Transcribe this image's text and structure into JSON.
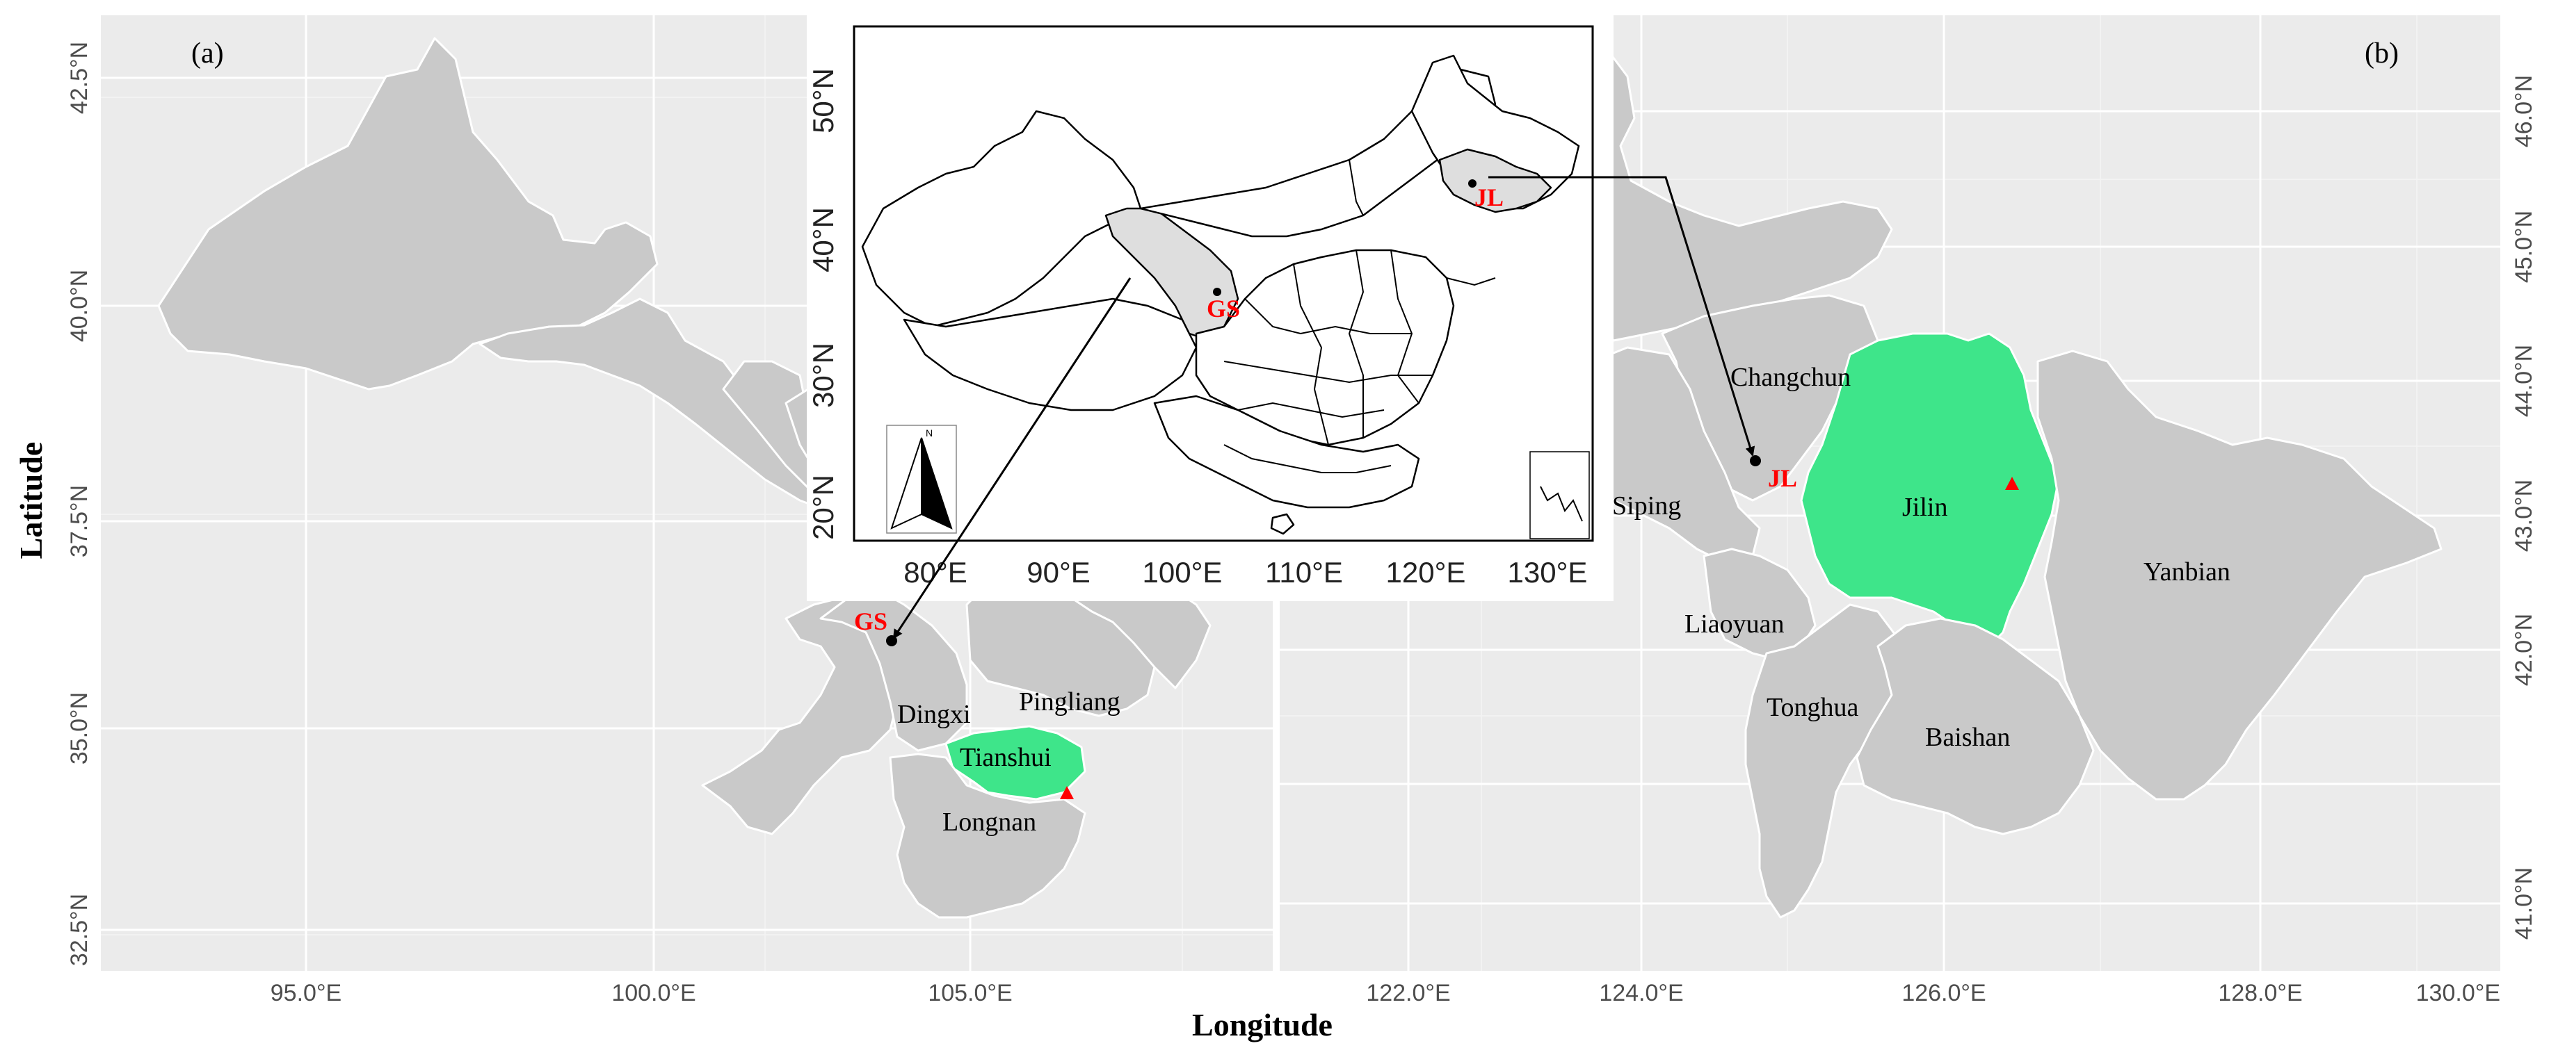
{
  "figure": {
    "x_axis_title": "Longitude",
    "y_axis_title": "Latitude"
  },
  "panel_a": {
    "label": "(a)",
    "y_ticks": [
      "42.5°N",
      "40.0°N",
      "37.5°N",
      "35.0°N",
      "32.5°N"
    ],
    "x_ticks": [
      "95.0°E",
      "100.0°E",
      "105.0°E"
    ],
    "regions": {
      "dingxi": "Dingxi",
      "pingliang": "Pingliang",
      "tianshui": "Tianshui",
      "longnan": "Longnan"
    },
    "capital_marker": "GS"
  },
  "panel_b": {
    "label": "(b)",
    "y_ticks": [
      "46.0°N",
      "45.0°N",
      "44.0°N",
      "43.0°N",
      "42.0°N",
      "41.0°N"
    ],
    "x_ticks": [
      "122.0°E",
      "124.0°E",
      "126.0°E",
      "128.0°E",
      "130.0°E"
    ],
    "regions": {
      "changchun": "Changchun",
      "siping": "Siping",
      "jilin": "Jilin",
      "yanbian": "Yanbian",
      "liaoyuan": "Liaoyuan",
      "tonghua": "Tonghua",
      "baishan": "Baishan"
    },
    "capital_marker": "JL"
  },
  "inset": {
    "y_ticks": [
      "50°N",
      "40°N",
      "30°N",
      "20°N"
    ],
    "x_ticks": [
      "80°E",
      "90°E",
      "100°E",
      "110°E",
      "120°E",
      "130°E"
    ],
    "north_arrow": "N",
    "labels": {
      "gs": "GS",
      "jl": "JL"
    }
  },
  "colors": {
    "panel_background": "#ebebeb",
    "region_fill": "#c9c9c9",
    "highlight_fill": "#3ee58a",
    "marker_red": "#ff0000"
  }
}
